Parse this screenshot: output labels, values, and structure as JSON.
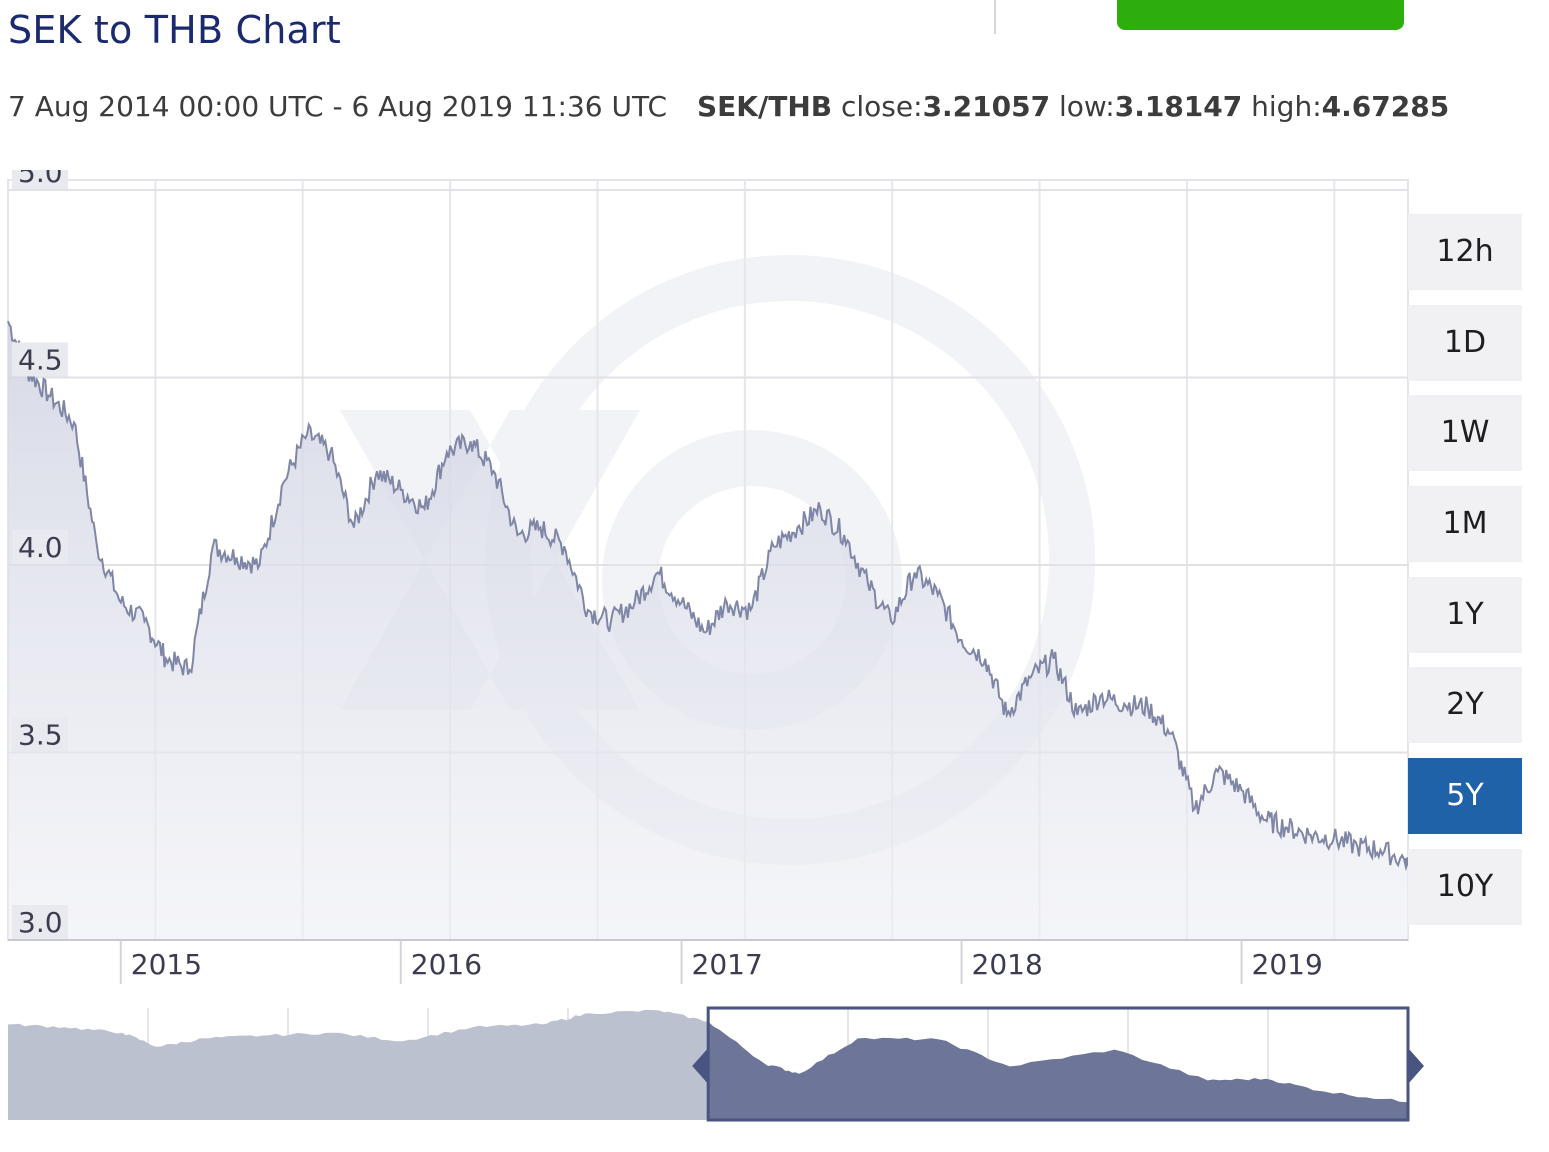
{
  "title": "SEK to THB Chart",
  "summary": {
    "range": "7 Aug 2014 00:00 UTC - 6 Aug 2019 11:36 UTC",
    "pair": "SEK/THB",
    "close_label": "close:",
    "close": "3.21057",
    "low_label": "low:",
    "low": "3.18147",
    "high_label": "high:",
    "high": "4.67285"
  },
  "colors": {
    "accent_green": "#2eae0c",
    "active_button": "#1f62a8",
    "line": "#7f86a6",
    "navigator_selected": "#6d7598",
    "navigator_unselected": "#bcc1d0"
  },
  "range_buttons": [
    {
      "label": "12h",
      "active": false
    },
    {
      "label": "1D",
      "active": false
    },
    {
      "label": "1W",
      "active": false
    },
    {
      "label": "1M",
      "active": false
    },
    {
      "label": "1Y",
      "active": false
    },
    {
      "label": "2Y",
      "active": false
    },
    {
      "label": "5Y",
      "active": true
    },
    {
      "label": "10Y",
      "active": false
    }
  ],
  "chart_data": {
    "type": "area",
    "title": "SEK to THB Chart",
    "series_name": "SEK/THB",
    "x_unit": "date",
    "xlim": [
      "2014-08-07",
      "2019-08-06"
    ],
    "ylim": [
      3.0,
      5.0
    ],
    "y_ticks": [
      "3.0",
      "3.5",
      "4.0",
      "4.5",
      "5.0"
    ],
    "x_ticks": [
      "2015",
      "2016",
      "2017",
      "2018",
      "2019"
    ],
    "grid": true,
    "watermark": "xe-logo",
    "points": [
      [
        "2014-08-07",
        4.65
      ],
      [
        "2014-09-01",
        4.52
      ],
      [
        "2014-10-01",
        4.45
      ],
      [
        "2014-11-01",
        4.38
      ],
      [
        "2014-12-01",
        4.05
      ],
      [
        "2015-01-01",
        3.9
      ],
      [
        "2015-02-01",
        3.85
      ],
      [
        "2015-03-01",
        3.75
      ],
      [
        "2015-04-01",
        3.72
      ],
      [
        "2015-05-01",
        4.05
      ],
      [
        "2015-06-01",
        4.02
      ],
      [
        "2015-07-01",
        4.0
      ],
      [
        "2015-08-01",
        4.22
      ],
      [
        "2015-09-01",
        4.35
      ],
      [
        "2015-10-01",
        4.3
      ],
      [
        "2015-11-01",
        4.1
      ],
      [
        "2015-12-01",
        4.25
      ],
      [
        "2016-01-01",
        4.2
      ],
      [
        "2016-02-01",
        4.15
      ],
      [
        "2016-03-01",
        4.3
      ],
      [
        "2016-04-01",
        4.33
      ],
      [
        "2016-05-01",
        4.25
      ],
      [
        "2016-06-01",
        4.08
      ],
      [
        "2016-07-01",
        4.1
      ],
      [
        "2016-08-01",
        4.05
      ],
      [
        "2016-09-01",
        3.88
      ],
      [
        "2016-10-01",
        3.85
      ],
      [
        "2016-11-01",
        3.9
      ],
      [
        "2016-12-01",
        3.98
      ],
      [
        "2017-01-01",
        3.9
      ],
      [
        "2017-02-01",
        3.82
      ],
      [
        "2017-03-01",
        3.9
      ],
      [
        "2017-04-01",
        3.88
      ],
      [
        "2017-05-01",
        4.05
      ],
      [
        "2017-06-01",
        4.1
      ],
      [
        "2017-07-01",
        4.15
      ],
      [
        "2017-08-01",
        4.08
      ],
      [
        "2017-09-01",
        3.95
      ],
      [
        "2017-10-01",
        3.85
      ],
      [
        "2017-11-01",
        3.98
      ],
      [
        "2017-12-01",
        3.92
      ],
      [
        "2018-01-01",
        3.8
      ],
      [
        "2018-02-01",
        3.75
      ],
      [
        "2018-03-01",
        3.6
      ],
      [
        "2018-04-01",
        3.7
      ],
      [
        "2018-05-01",
        3.75
      ],
      [
        "2018-06-01",
        3.6
      ],
      [
        "2018-07-01",
        3.65
      ],
      [
        "2018-08-01",
        3.63
      ],
      [
        "2018-09-01",
        3.62
      ],
      [
        "2018-10-01",
        3.55
      ],
      [
        "2018-11-01",
        3.35
      ],
      [
        "2018-12-01",
        3.45
      ],
      [
        "2019-01-01",
        3.4
      ],
      [
        "2019-02-01",
        3.32
      ],
      [
        "2019-03-01",
        3.3
      ],
      [
        "2019-04-01",
        3.28
      ],
      [
        "2019-05-01",
        3.27
      ],
      [
        "2019-06-01",
        3.25
      ],
      [
        "2019-07-01",
        3.24
      ],
      [
        "2019-08-06",
        3.21
      ]
    ],
    "navigator": {
      "xlim": [
        "2009-08-07",
        "2019-08-06"
      ],
      "selected_from": "2014-08-07",
      "selected_to": "2019-08-06",
      "points": [
        [
          "2009-08-07",
          4.6
        ],
        [
          "2010-01-01",
          4.55
        ],
        [
          "2010-06-01",
          4.45
        ],
        [
          "2010-09-01",
          4.2
        ],
        [
          "2011-01-01",
          4.35
        ],
        [
          "2011-06-01",
          4.4
        ],
        [
          "2011-12-01",
          4.45
        ],
        [
          "2012-06-01",
          4.3
        ],
        [
          "2012-12-01",
          4.55
        ],
        [
          "2013-06-01",
          4.6
        ],
        [
          "2013-10-01",
          4.8
        ],
        [
          "2014-04-01",
          4.85
        ],
        [
          "2014-08-07",
          4.65
        ],
        [
          "2015-01-01",
          3.9
        ],
        [
          "2015-04-01",
          3.72
        ],
        [
          "2015-09-01",
          4.35
        ],
        [
          "2016-04-01",
          4.33
        ],
        [
          "2016-10-01",
          3.85
        ],
        [
          "2017-07-01",
          4.15
        ],
        [
          "2018-03-01",
          3.6
        ],
        [
          "2018-08-01",
          3.63
        ],
        [
          "2019-01-01",
          3.4
        ],
        [
          "2019-08-06",
          3.21
        ]
      ]
    }
  }
}
